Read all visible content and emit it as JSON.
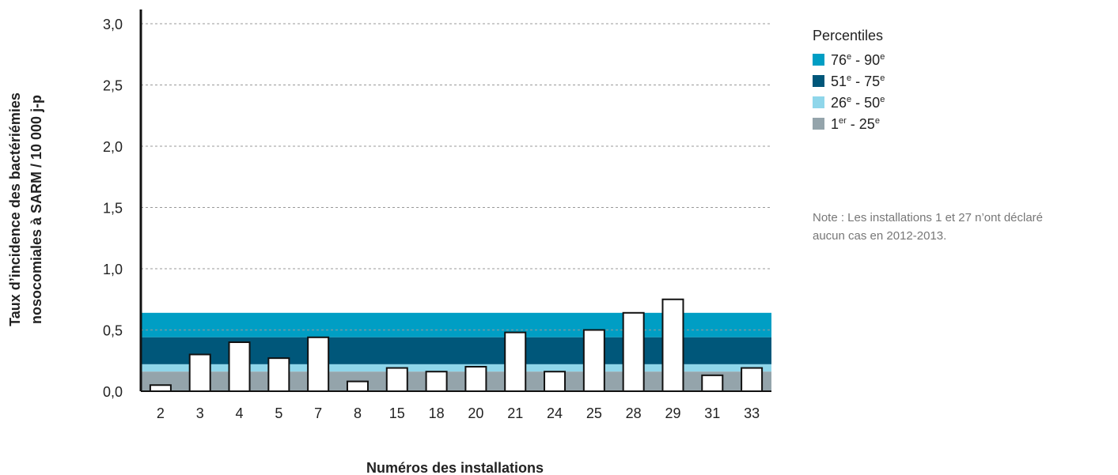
{
  "chart_data": {
    "type": "bar",
    "y_label": [
      "Taux d’incidence des bactériémies",
      "nosocomiales à SARM / 10 000 j-p"
    ],
    "x_label": "Numéros des installations",
    "categories": [
      "2",
      "3",
      "4",
      "5",
      "7",
      "8",
      "15",
      "18",
      "20",
      "21",
      "24",
      "25",
      "28",
      "29",
      "31",
      "33"
    ],
    "values": [
      0.05,
      0.3,
      0.4,
      0.27,
      0.44,
      0.08,
      0.19,
      0.16,
      0.2,
      0.48,
      0.16,
      0.5,
      0.64,
      0.75,
      0.13,
      0.19
    ],
    "color": "#ffffff",
    "ylim": [
      0,
      3.0
    ],
    "yticks": [
      {
        "value": 0,
        "label": "0,0"
      },
      {
        "value": 0.5,
        "label": "0,5"
      },
      {
        "value": 1.0,
        "label": "1,0"
      },
      {
        "value": 1.5,
        "label": "1,5"
      },
      {
        "value": 2.0,
        "label": "2,0"
      },
      {
        "value": 2.5,
        "label": "2,5"
      },
      {
        "value": 3.0,
        "label": "3,0"
      }
    ],
    "grid": true,
    "legend_title": "Percentiles",
    "bands": [
      {
        "label_parts": [
          "76",
          "e",
          " - 90",
          "e"
        ],
        "color": "#009ec4",
        "from": 0.44,
        "to": 0.64
      },
      {
        "label_parts": [
          "51",
          "e",
          " - 75",
          "e"
        ],
        "color": "#00577a",
        "from": 0.22,
        "to": 0.44
      },
      {
        "label_parts": [
          "26",
          "e",
          " - 50",
          "e"
        ],
        "color": "#8fd6ea",
        "from": 0.16,
        "to": 0.22
      },
      {
        "label_parts": [
          "1",
          "er",
          " - 25",
          "e"
        ],
        "color": "#94a4ab",
        "from": 0,
        "to": 0.16
      }
    ],
    "note": [
      "Note : Les installations 1 et 27 n’ont déclaré",
      "aucun cas en 2012-2013."
    ]
  }
}
